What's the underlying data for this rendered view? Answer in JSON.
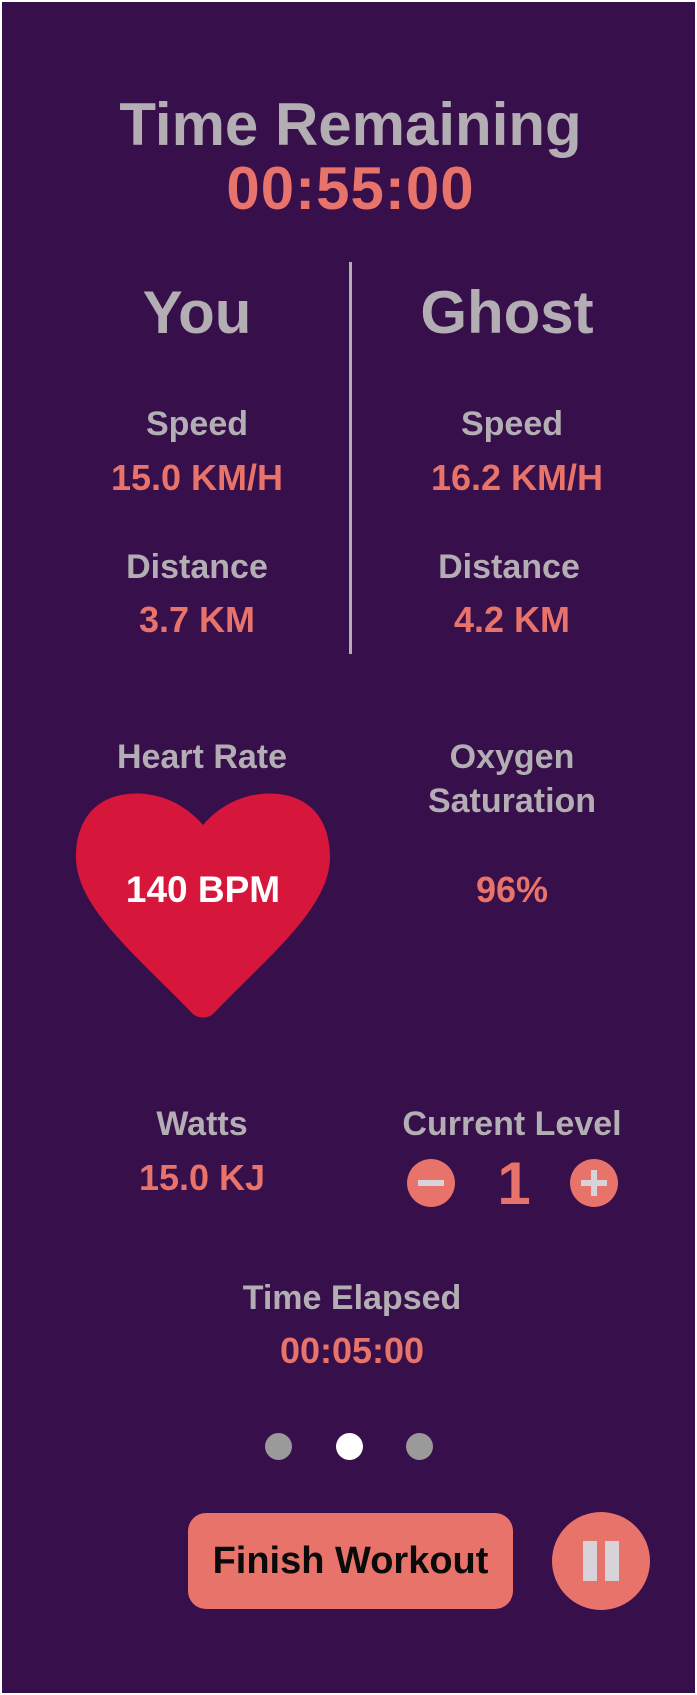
{
  "timer": {
    "label": "Time Remaining",
    "value": "00:55:00"
  },
  "you": {
    "title": "You",
    "speed_label": "Speed",
    "speed_value": "15.0 KM/H",
    "distance_label": "Distance",
    "distance_value": "3.7 KM"
  },
  "ghost": {
    "title": "Ghost",
    "speed_label": "Speed",
    "speed_value": "16.2 KM/H",
    "distance_label": "Distance",
    "distance_value": "4.2 KM"
  },
  "heart_rate": {
    "label": "Heart Rate",
    "value": "140 BPM",
    "icon": "heart-icon",
    "color": "#d7163c"
  },
  "oxygen": {
    "label_line1": "Oxygen",
    "label_line2": "Saturation",
    "value": "96%"
  },
  "watts": {
    "label": "Watts",
    "value": "15.0 KJ"
  },
  "level": {
    "label": "Current Level",
    "value": "1",
    "decrease_icon": "minus-icon",
    "increase_icon": "plus-icon"
  },
  "elapsed": {
    "label": "Time Elapsed",
    "value": "00:05:00"
  },
  "pagination": {
    "active_page": 2,
    "total_pages": 3
  },
  "actions": {
    "finish_label": "Finish Workout",
    "pause_icon": "pause-icon"
  },
  "colors": {
    "background": "#370f4a",
    "accent": "#e8736a",
    "label": "#b3aeb3",
    "heart": "#d7163c"
  }
}
